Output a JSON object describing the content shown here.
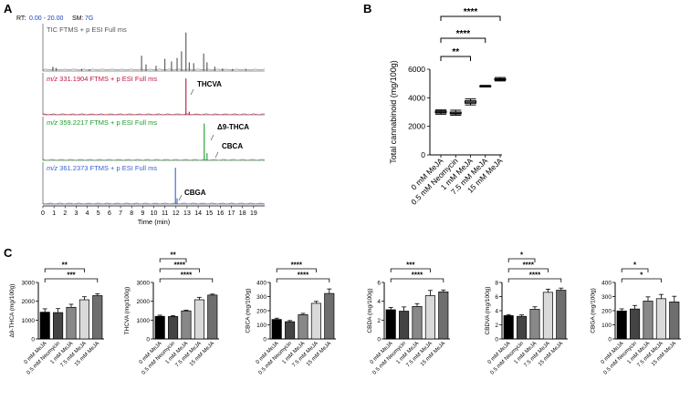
{
  "panels": {
    "A": "A",
    "B": "B",
    "C": "C"
  },
  "colors": {
    "tic": "#555555",
    "thcva": "#c0143c",
    "thca": "#1a9e2a",
    "cbga": "#3a5fcd",
    "axis": "#000000",
    "bar_shades": [
      "#000000",
      "#444444",
      "#888888",
      "#d9d9d9",
      "#6e6e6e"
    ]
  },
  "chromatogram": {
    "rt_label": "RT:",
    "rt_range": "0.00 - 20.00",
    "sm_label": "SM:",
    "sm_value": "7G",
    "x_axis_label": "Time (min)",
    "x_ticks": [
      "0",
      "1",
      "2",
      "3",
      "4",
      "5",
      "6",
      "7",
      "8",
      "9",
      "10",
      "11",
      "12",
      "13",
      "14",
      "15",
      "16",
      "17",
      "18",
      "19"
    ],
    "traces": [
      {
        "key": "tic",
        "mz": "",
        "label": "TIC FTMS + p ESI Full ms",
        "peaks": []
      },
      {
        "key": "thcva",
        "mz": "m/z",
        "label": "331.1904 FTMS + p ESI Full ms",
        "peaks": [
          "THCVA"
        ]
      },
      {
        "key": "thca",
        "mz": "m/z",
        "label": "359.2217 FTMS + p ESI Full ms",
        "peaks": [
          "Δ9-THCA",
          "CBCA"
        ]
      },
      {
        "key": "cbga",
        "mz": "m/z",
        "label": "361.2373 FTMS + p ESI Full ms",
        "peaks": [
          "CBGA"
        ]
      }
    ]
  },
  "chart_data": [
    {
      "type": "box",
      "panel": "B",
      "ylabel": "Total cannabinoid (mg/100g)",
      "ylim": [
        0,
        6000
      ],
      "yticks": [
        0,
        2000,
        4000,
        6000
      ],
      "categories": [
        "0 mM MeJA",
        "0.5 mM Neomycin",
        "1 mM MeJA",
        "7.5 mM MeJA",
        "15 mM MeJA"
      ],
      "min": [
        2850,
        2780,
        3500,
        4760,
        5180
      ],
      "q1": [
        2940,
        2870,
        3620,
        4790,
        5240
      ],
      "median": [
        3010,
        2920,
        3700,
        4810,
        5290
      ],
      "q3": [
        3080,
        3000,
        3790,
        4840,
        5340
      ],
      "max": [
        3150,
        3130,
        3920,
        4870,
        5420
      ],
      "significance": [
        {
          "from": 0,
          "to": 2,
          "label": "**"
        },
        {
          "from": 0,
          "to": 3,
          "label": "****"
        },
        {
          "from": 0,
          "to": 4,
          "label": "****"
        }
      ]
    },
    {
      "type": "bar",
      "panel": "C",
      "ylabel": "Δ9-THCA (mg/100g)",
      "ylim": [
        0,
        3000
      ],
      "yticks": [
        0,
        1000,
        2000,
        3000
      ],
      "categories": [
        "0 mM MeJA",
        "0.5 mM Neomycin",
        "1 mM MeJA",
        "7.5 mM MeJA",
        "15 mM MeJA"
      ],
      "values": [
        1420,
        1400,
        1680,
        2080,
        2300
      ],
      "errors": [
        180,
        210,
        160,
        160,
        100
      ],
      "significance": [
        {
          "from": 0,
          "to": 3,
          "label": "**"
        },
        {
          "from": 0,
          "to": 4,
          "label": "***"
        }
      ]
    },
    {
      "type": "bar",
      "panel": "C",
      "ylabel": "THCVA (mg/100g)",
      "ylim": [
        0,
        3000
      ],
      "yticks": [
        0,
        1000,
        2000,
        3000
      ],
      "categories": [
        "0 mM MeJA",
        "0.5 mM Neomycin",
        "1 mM MeJA",
        "7.5 mM MeJA",
        "15 mM MeJA"
      ],
      "values": [
        1200,
        1190,
        1490,
        2080,
        2330
      ],
      "errors": [
        60,
        50,
        40,
        130,
        50
      ],
      "significance": [
        {
          "from": 0,
          "to": 2,
          "label": "**"
        },
        {
          "from": 0,
          "to": 3,
          "label": "****"
        },
        {
          "from": 0,
          "to": 4,
          "label": "****"
        }
      ]
    },
    {
      "type": "bar",
      "panel": "C",
      "ylabel": "CBCA (mg/100g)",
      "ylim": [
        0,
        400
      ],
      "yticks": [
        0,
        100,
        200,
        300,
        400
      ],
      "categories": [
        "0 mM MeJA",
        "0.5 mM Neomycin",
        "1 mM MeJA",
        "7.5 mM MeJA",
        "15 mM MeJA"
      ],
      "values": [
        138,
        122,
        172,
        252,
        322
      ],
      "errors": [
        9,
        8,
        9,
        14,
        32
      ],
      "significance": [
        {
          "from": 0,
          "to": 3,
          "label": "****"
        },
        {
          "from": 0,
          "to": 4,
          "label": "****"
        }
      ]
    },
    {
      "type": "bar",
      "panel": "C",
      "ylabel": "CBDA (mg/100g)",
      "ylim": [
        0,
        6
      ],
      "yticks": [
        0,
        2,
        4,
        6
      ],
      "categories": [
        "0 mM MeJA",
        "0.5 mM Neomycin",
        "1 mM MeJA",
        "7.5 mM MeJA",
        "15 mM MeJA"
      ],
      "values": [
        3.1,
        2.95,
        3.45,
        4.6,
        5.0
      ],
      "errors": [
        0.25,
        0.45,
        0.3,
        0.55,
        0.2
      ],
      "significance": [
        {
          "from": 0,
          "to": 3,
          "label": "***"
        },
        {
          "from": 0,
          "to": 4,
          "label": "****"
        }
      ]
    },
    {
      "type": "bar",
      "panel": "C",
      "ylabel": "CBDVA (mg/100g)",
      "ylim": [
        0,
        8
      ],
      "yticks": [
        0,
        2,
        4,
        6,
        8
      ],
      "categories": [
        "0 mM MeJA",
        "0.5 mM Neomycin",
        "1 mM MeJA",
        "7.5 mM MeJA",
        "15 mM MeJA"
      ],
      "values": [
        3.3,
        3.2,
        4.2,
        6.6,
        6.9
      ],
      "errors": [
        0.15,
        0.2,
        0.35,
        0.45,
        0.3
      ],
      "significance": [
        {
          "from": 0,
          "to": 2,
          "label": "*"
        },
        {
          "from": 0,
          "to": 3,
          "label": "****"
        },
        {
          "from": 0,
          "to": 4,
          "label": "****"
        }
      ]
    },
    {
      "type": "bar",
      "panel": "C",
      "ylabel": "CBGA (mg/100g)",
      "ylim": [
        0,
        400
      ],
      "yticks": [
        0,
        100,
        200,
        300,
        400
      ],
      "categories": [
        "0 mM MeJA",
        "0.5 mM Neomycin",
        "1 mM MeJA",
        "7.5 mM MeJA",
        "15 mM MeJA"
      ],
      "values": [
        198,
        212,
        268,
        285,
        262
      ],
      "errors": [
        15,
        25,
        30,
        30,
        40
      ],
      "significance": [
        {
          "from": 0,
          "to": 2,
          "label": "*"
        },
        {
          "from": 0,
          "to": 3,
          "label": "*"
        }
      ]
    }
  ]
}
